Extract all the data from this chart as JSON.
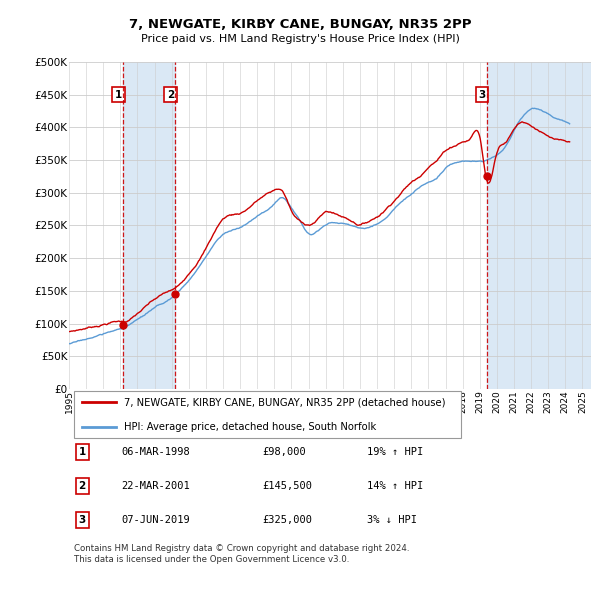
{
  "title": "7, NEWGATE, KIRBY CANE, BUNGAY, NR35 2PP",
  "subtitle": "Price paid vs. HM Land Registry's House Price Index (HPI)",
  "ytick_values": [
    0,
    50000,
    100000,
    150000,
    200000,
    250000,
    300000,
    350000,
    400000,
    450000,
    500000
  ],
  "xlim_start": 1995.0,
  "xlim_end": 2025.5,
  "ylim": [
    0,
    500000
  ],
  "sale_dates": [
    1998.18,
    2001.22,
    2019.43
  ],
  "sale_prices": [
    98000,
    145500,
    325000
  ],
  "sale_labels": [
    "1",
    "2",
    "3"
  ],
  "hpi_line_color": "#5b9bd5",
  "sale_line_color": "#cc0000",
  "vline_color": "#cc0000",
  "background_color": "#ffffff",
  "shade_color": "#dae8f5",
  "legend_entries": [
    "7, NEWGATE, KIRBY CANE, BUNGAY, NR35 2PP (detached house)",
    "HPI: Average price, detached house, South Norfolk"
  ],
  "table_rows": [
    [
      "1",
      "06-MAR-1998",
      "£98,000",
      "19% ↑ HPI"
    ],
    [
      "2",
      "22-MAR-2001",
      "£145,500",
      "14% ↑ HPI"
    ],
    [
      "3",
      "07-JUN-2019",
      "£325,000",
      "3% ↓ HPI"
    ]
  ],
  "footnote": "Contains HM Land Registry data © Crown copyright and database right 2024.\nThis data is licensed under the Open Government Licence v3.0.",
  "hpi_anchors_x": [
    1995,
    1996,
    1997,
    1998,
    1999,
    2000,
    2001,
    2002,
    2003,
    2004,
    2005,
    2006,
    2007,
    2007.5,
    2008,
    2008.5,
    2009,
    2009.5,
    2010,
    2010.5,
    2011,
    2011.5,
    2012,
    2012.5,
    2013,
    2013.5,
    2014,
    2014.5,
    2015,
    2015.5,
    2016,
    2016.5,
    2017,
    2017.5,
    2018,
    2018.5,
    2019,
    2019.5,
    2020,
    2020.5,
    2021,
    2021.5,
    2022,
    2022.5,
    2023,
    2023.5,
    2024,
    2024.25
  ],
  "hpi_anchors_y": [
    72000,
    78000,
    86000,
    94000,
    107000,
    123000,
    138000,
    165000,
    200000,
    235000,
    245000,
    262000,
    280000,
    290000,
    275000,
    255000,
    238000,
    243000,
    253000,
    256000,
    255000,
    252000,
    248000,
    250000,
    256000,
    265000,
    278000,
    290000,
    300000,
    310000,
    318000,
    325000,
    338000,
    345000,
    348000,
    348000,
    347000,
    350000,
    358000,
    370000,
    395000,
    415000,
    425000,
    425000,
    418000,
    410000,
    406000,
    403000
  ],
  "red_anchors_x": [
    1995,
    1996,
    1997,
    1998,
    1998.18,
    1999,
    2000,
    2001,
    2001.22,
    2002,
    2003,
    2004,
    2005,
    2006,
    2007,
    2007.5,
    2008,
    2008.5,
    2009,
    2009.5,
    2010,
    2010.5,
    2011,
    2011.5,
    2012,
    2012.5,
    2013,
    2013.5,
    2014,
    2014.5,
    2015,
    2015.5,
    2016,
    2016.5,
    2017,
    2017.5,
    2018,
    2018.5,
    2019,
    2019.43,
    2020,
    2020.5,
    2021,
    2021.5,
    2022,
    2022.5,
    2023,
    2023.5,
    2024,
    2024.25
  ],
  "red_anchors_y": [
    80000,
    86000,
    93000,
    98000,
    98000,
    110000,
    130000,
    143000,
    145500,
    170000,
    210000,
    255000,
    265000,
    285000,
    300000,
    298000,
    268000,
    252000,
    248000,
    255000,
    267000,
    265000,
    260000,
    255000,
    250000,
    255000,
    263000,
    275000,
    290000,
    305000,
    318000,
    328000,
    345000,
    355000,
    370000,
    378000,
    385000,
    392000,
    393000,
    325000,
    370000,
    388000,
    408000,
    420000,
    415000,
    408000,
    398000,
    392000,
    387000,
    385000
  ]
}
